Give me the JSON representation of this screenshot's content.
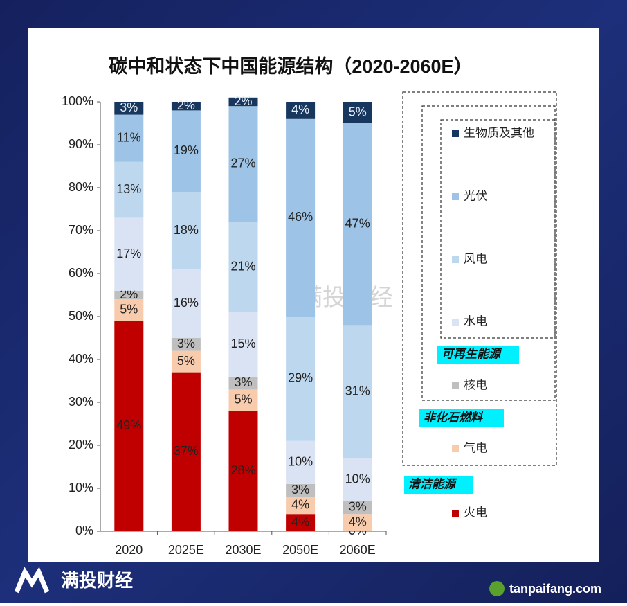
{
  "chart_data": {
    "type": "stacked_bar",
    "title": "碳中和状态下中国能源结构（2020-2060E）",
    "categories": [
      "2020",
      "2025E",
      "2030E",
      "2050E",
      "2060E"
    ],
    "series": [
      {
        "name": "火电",
        "color": "#c00000",
        "values": [
          49,
          37,
          28,
          4,
          0
        ],
        "value_labels": [
          "49%",
          "37%",
          "28%",
          "4%",
          "0%"
        ]
      },
      {
        "name": "气电",
        "color": "#f8cbad",
        "values": [
          5,
          5,
          5,
          4,
          4
        ],
        "value_labels": [
          "5%",
          "5%",
          "5%",
          "4%",
          "4%"
        ]
      },
      {
        "name": "核电",
        "color": "#bfbfbf",
        "values": [
          2,
          3,
          3,
          3,
          3
        ],
        "value_labels": [
          "2%",
          "3%",
          "3%",
          "3%",
          "3%"
        ]
      },
      {
        "name": "水电",
        "color": "#dae3f3",
        "values": [
          17,
          16,
          15,
          10,
          10
        ],
        "value_labels": [
          "17%",
          "16%",
          "15%",
          "10%",
          "10%"
        ]
      },
      {
        "name": "风电",
        "color": "#bdd7ee",
        "values": [
          13,
          18,
          21,
          29,
          31
        ],
        "value_labels": [
          "13%",
          "18%",
          "21%",
          "29%",
          "31%"
        ]
      },
      {
        "name": "光伏",
        "color": "#9dc3e6",
        "values": [
          11,
          19,
          27,
          46,
          47
        ],
        "value_labels": [
          "11%",
          "19%",
          "27%",
          "46%",
          "47%"
        ]
      },
      {
        "name": "生物质及其他",
        "color": "#17375e",
        "values": [
          3,
          2,
          2,
          4,
          5
        ],
        "value_labels": [
          "3%",
          "2%",
          "2%",
          "4%",
          "5%"
        ]
      }
    ],
    "ylim": [
      0,
      100
    ],
    "yticks": [
      {
        "value": 0,
        "label": "0%"
      },
      {
        "value": 10,
        "label": "10%"
      },
      {
        "value": 20,
        "label": "20%"
      },
      {
        "value": 30,
        "label": "30%"
      },
      {
        "value": 40,
        "label": "40%"
      },
      {
        "value": 50,
        "label": "50%"
      },
      {
        "value": 60,
        "label": "60%"
      },
      {
        "value": 70,
        "label": "70%"
      },
      {
        "value": 80,
        "label": "80%"
      },
      {
        "value": 90,
        "label": "90%"
      },
      {
        "value": 100,
        "label": "100%"
      }
    ],
    "legend_groups": [
      "可再生能源",
      "非化石燃料",
      "清洁能源"
    ]
  },
  "watermark": "满投财经",
  "footer_brand": "满投财经",
  "footer_site": "tanpaifang.com"
}
